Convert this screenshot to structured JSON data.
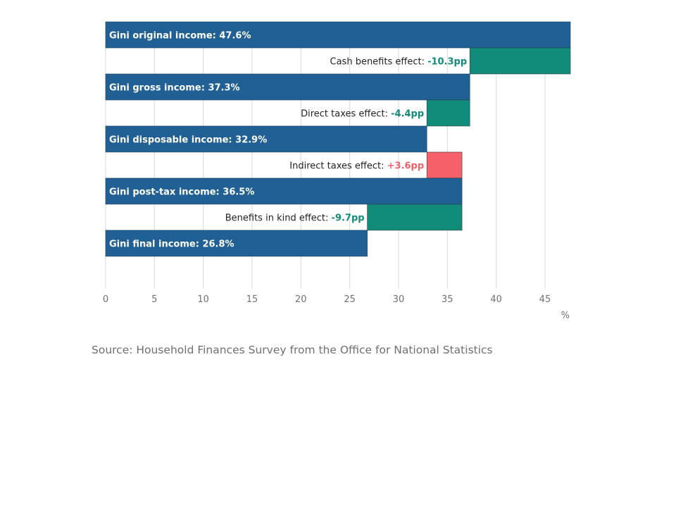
{
  "colors": {
    "level": "#206095",
    "decrease": "#118c7b",
    "increase": "#f66068",
    "grid": "#d9d9d9",
    "axis": "#707070"
  },
  "chart_data": {
    "type": "bar",
    "orientation": "horizontal",
    "subtype": "waterfall",
    "xlim": [
      0,
      47.6
    ],
    "xticks": [
      0,
      5,
      10,
      15,
      20,
      25,
      30,
      35,
      40,
      45
    ],
    "unit": "%",
    "grid": true,
    "rows": [
      {
        "kind": "level",
        "label": "Gini original income: 47.6%",
        "value": 47.6
      },
      {
        "kind": "effect",
        "label": "Cash benefits effect: ",
        "value_text": "-10.3pp",
        "from": 47.6,
        "to": 37.3
      },
      {
        "kind": "level",
        "label": "Gini gross income: 37.3%",
        "value": 37.3
      },
      {
        "kind": "effect",
        "label": "Direct taxes effect: ",
        "value_text": "-4.4pp",
        "from": 37.3,
        "to": 32.9
      },
      {
        "kind": "level",
        "label": "Gini disposable income: 32.9%",
        "value": 32.9
      },
      {
        "kind": "effect",
        "label": "Indirect taxes effect: ",
        "value_text": "+3.6pp",
        "from": 32.9,
        "to": 36.5
      },
      {
        "kind": "level",
        "label": "Gini post-tax income: 36.5%",
        "value": 36.5
      },
      {
        "kind": "effect",
        "label": "Benefits in kind effect: ",
        "value_text": "-9.7pp",
        "from": 36.5,
        "to": 26.8
      },
      {
        "kind": "level",
        "label": "Gini final income: 26.8%",
        "value": 26.8
      }
    ]
  },
  "source": "Source: Household Finances Survey from the Office for National Statistics"
}
